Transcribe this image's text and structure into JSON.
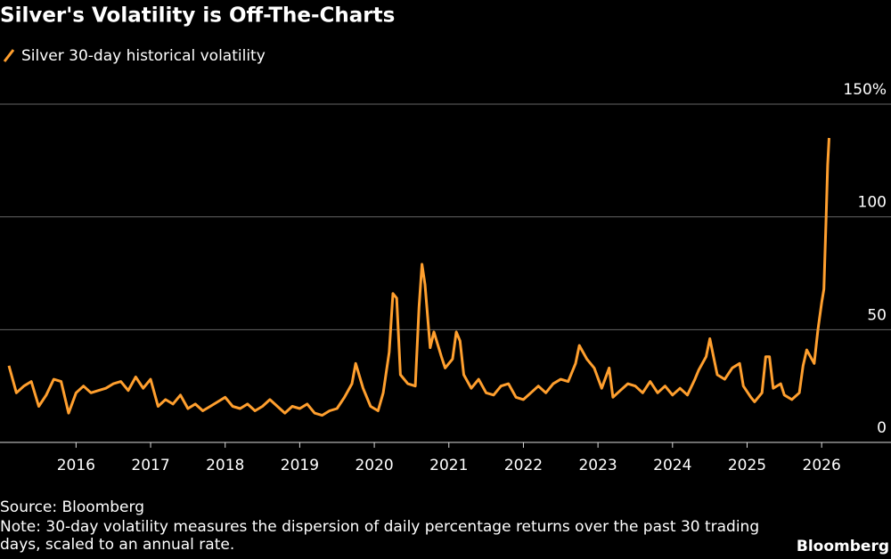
{
  "chart_data": {
    "type": "line",
    "title": "Silver's Volatility is Off-The-Charts",
    "source": "Source: Bloomberg",
    "note": "Note: 30-day volatility measures the dispersion of daily percentage returns over the past 30 trading days, scaled to an annual rate.",
    "credit": "Bloomberg",
    "x": [
      2015.1,
      2015.2,
      2015.3,
      2015.4,
      2015.5,
      2015.6,
      2015.7,
      2015.8,
      2015.9,
      2016.0,
      2016.1,
      2016.2,
      2016.3,
      2016.4,
      2016.5,
      2016.6,
      2016.7,
      2016.8,
      2016.9,
      2017.0,
      2017.1,
      2017.2,
      2017.3,
      2017.4,
      2017.5,
      2017.6,
      2017.7,
      2017.8,
      2017.9,
      2018.0,
      2018.1,
      2018.2,
      2018.3,
      2018.4,
      2018.5,
      2018.6,
      2018.7,
      2018.8,
      2018.9,
      2019.0,
      2019.1,
      2019.2,
      2019.3,
      2019.4,
      2019.5,
      2019.6,
      2019.7,
      2019.75,
      2019.85,
      2019.95,
      2020.05,
      2020.12,
      2020.2,
      2020.25,
      2020.3,
      2020.35,
      2020.45,
      2020.55,
      2020.6,
      2020.64,
      2020.68,
      2020.75,
      2020.8,
      2020.9,
      2020.95,
      2021.05,
      2021.1,
      2021.15,
      2021.2,
      2021.3,
      2021.4,
      2021.5,
      2021.6,
      2021.7,
      2021.8,
      2021.9,
      2022.0,
      2022.1,
      2022.2,
      2022.3,
      2022.4,
      2022.5,
      2022.6,
      2022.7,
      2022.75,
      2022.85,
      2022.95,
      2023.05,
      2023.15,
      2023.2,
      2023.3,
      2023.4,
      2023.5,
      2023.6,
      2023.7,
      2023.8,
      2023.9,
      2024.0,
      2024.1,
      2024.2,
      2024.3,
      2024.35,
      2024.45,
      2024.5,
      2024.55,
      2024.6,
      2024.7,
      2024.8,
      2024.9,
      2024.95,
      2025.05,
      2025.1,
      2025.2,
      2025.25,
      2025.3,
      2025.35,
      2025.45,
      2025.5,
      2025.6,
      2025.7,
      2025.75,
      2025.8,
      2025.85,
      2025.9,
      2025.95,
      2026.0,
      2026.03,
      2026.06,
      2026.08,
      2026.1
    ],
    "series": [
      {
        "name": "Silver 30-day historical volatility",
        "color": "#ff9f2e",
        "values": [
          34,
          22,
          25,
          27,
          16,
          21,
          28,
          27,
          13,
          22,
          25,
          22,
          23,
          24,
          26,
          27,
          23,
          29,
          24,
          28,
          16,
          19,
          17,
          21,
          15,
          17,
          14,
          16,
          18,
          20,
          16,
          15,
          17,
          14,
          16,
          19,
          16,
          13,
          16,
          15,
          17,
          13,
          12,
          14,
          15,
          20,
          26,
          35,
          24,
          16,
          14,
          22,
          40,
          66,
          64,
          30,
          26,
          25,
          60,
          79,
          70,
          42,
          49,
          38,
          33,
          37,
          49,
          45,
          30,
          24,
          28,
          22,
          21,
          25,
          26,
          20,
          19,
          22,
          25,
          22,
          26,
          28,
          27,
          35,
          43,
          37,
          33,
          24,
          33,
          20,
          23,
          26,
          25,
          22,
          27,
          22,
          25,
          21,
          24,
          21,
          28,
          32,
          38,
          46,
          38,
          30,
          28,
          33,
          35,
          25,
          20,
          18,
          22,
          38,
          38,
          24,
          26,
          21,
          19,
          22,
          34,
          41,
          38,
          35,
          50,
          62,
          68,
          100,
          123,
          135
        ]
      }
    ],
    "xlim": [
      2014.98,
      2026.93
    ],
    "xticks": [
      2016,
      2017,
      2018,
      2019,
      2020,
      2021,
      2022,
      2023,
      2024,
      2025,
      2026
    ],
    "ylim": [
      0,
      150
    ],
    "yticks": [
      0,
      50,
      100,
      {
        "value": 150,
        "label": "150%"
      }
    ],
    "grid": true
  }
}
